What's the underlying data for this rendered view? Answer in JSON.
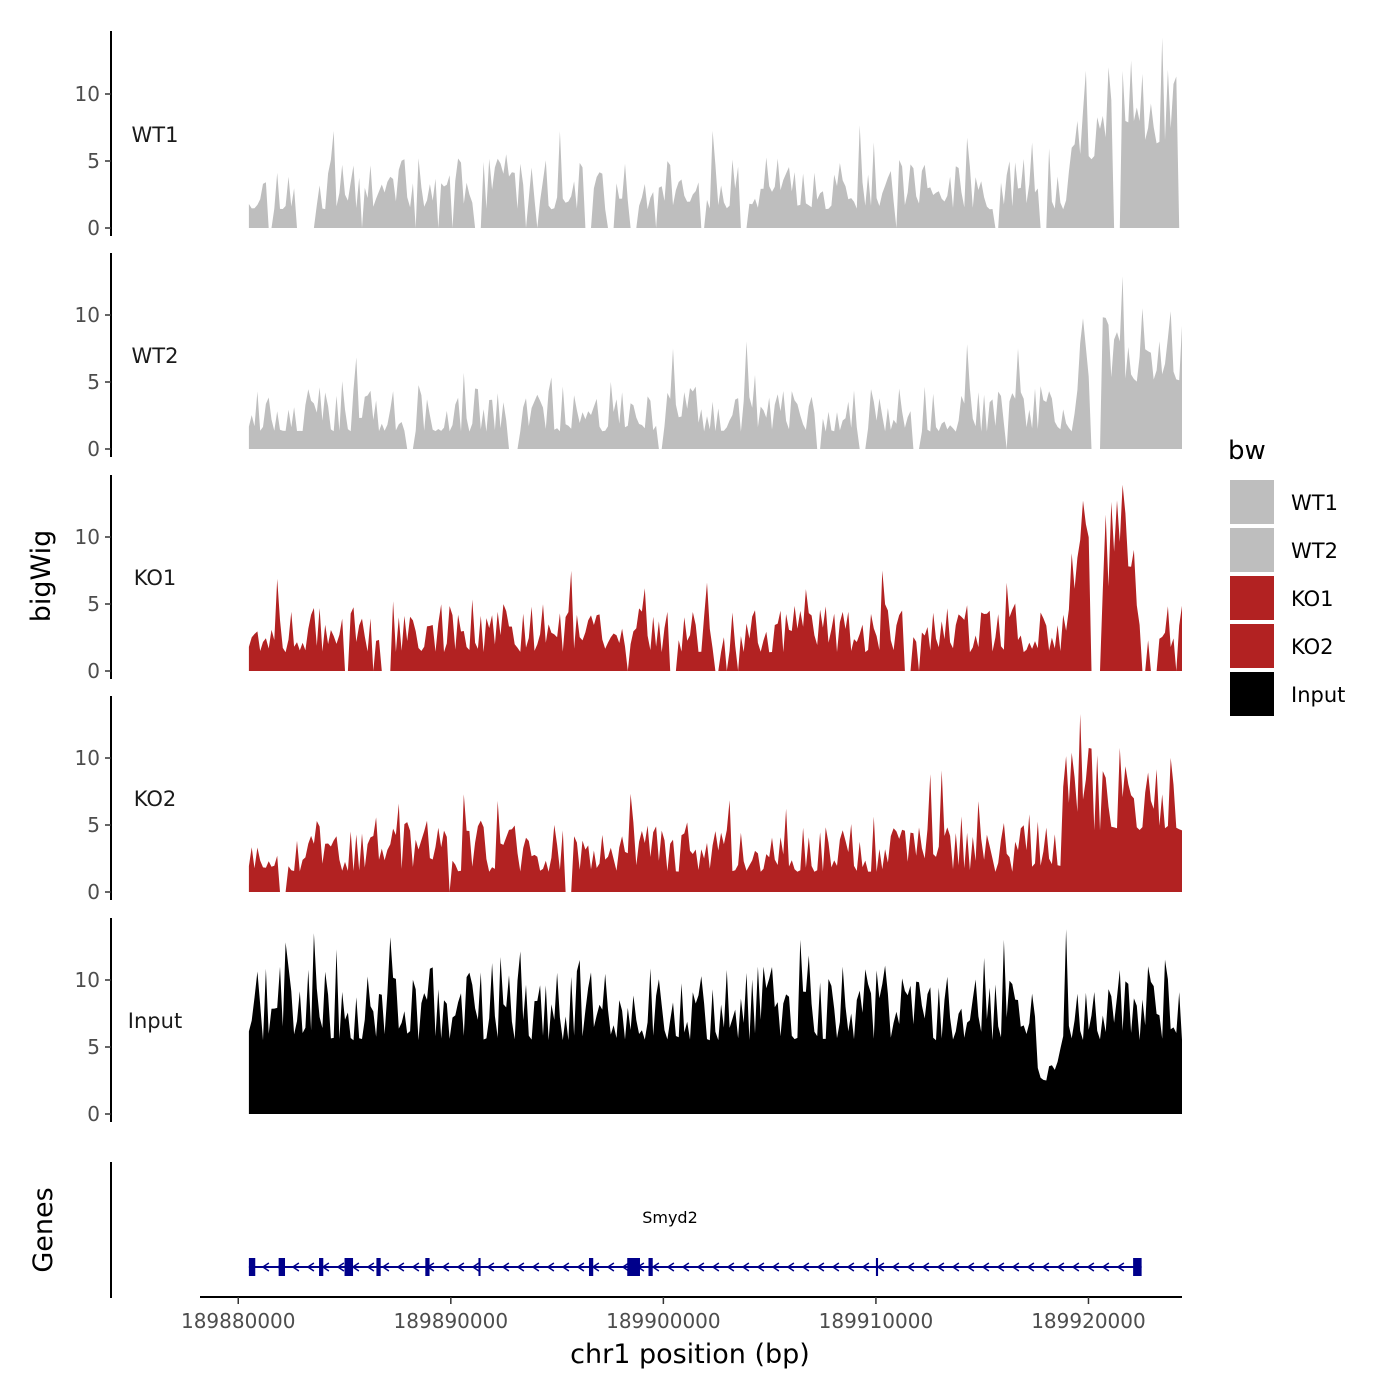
{
  "chart_data": {
    "type": "area",
    "y_axis_title": "bigWig",
    "x_axis_title": "chr1 position (bp)",
    "x_ticks": [
      189880000,
      189890000,
      189900000,
      189910000,
      189920000
    ],
    "x_tick_labels": [
      "189880000",
      "189890000",
      "189900000",
      "189910000",
      "189920000"
    ],
    "xlim": [
      189878200,
      189924400
    ],
    "data_xrange": [
      189880500,
      189924400
    ],
    "ylim": [
      0,
      14.5
    ],
    "y_ticks": [
      0,
      5,
      10
    ],
    "y_tick_labels": [
      "0",
      "5",
      "10"
    ],
    "legend": {
      "title": "bw",
      "entries": [
        {
          "label": "WT1",
          "color": "#bebebe"
        },
        {
          "label": "WT2",
          "color": "#bebebe"
        },
        {
          "label": "KO1",
          "color": "#b22222"
        },
        {
          "label": "KO2",
          "color": "#b22222"
        },
        {
          "label": "Input",
          "color": "#000000"
        }
      ]
    },
    "tracks": [
      {
        "name": "WT1",
        "color": "#bebebe",
        "seed": 11,
        "base": 1.4,
        "noise": 2.4,
        "peak": 0.07,
        "peakAmp": 4.5,
        "gap": 0.07,
        "regions": [
          {
            "start": 0.88,
            "end": 1.0,
            "base": 5.0,
            "noise": 4.5
          }
        ],
        "peaks": [
          {
            "pos": 0.944,
            "value": 12.5
          },
          {
            "pos": 0.922,
            "value": 12.0
          },
          {
            "pos": 0.958,
            "value": 11.5
          },
          {
            "pos": 0.67,
            "value": 6.4
          }
        ]
      },
      {
        "name": "WT2",
        "color": "#bebebe",
        "seed": 23,
        "base": 1.3,
        "noise": 2.2,
        "peak": 0.06,
        "peakAmp": 4.0,
        "gap": 0.02,
        "regions": [
          {
            "start": 0.89,
            "end": 1.0,
            "base": 5.0,
            "noise": 3.5
          }
        ],
        "peaks": [
          {
            "pos": 0.935,
            "value": 12.9
          },
          {
            "pos": 0.825,
            "value": 7.5
          },
          {
            "pos": 0.999,
            "value": 9.2
          }
        ]
      },
      {
        "name": "KO1",
        "color": "#b22222",
        "seed": 37,
        "base": 1.4,
        "noise": 2.3,
        "peak": 0.07,
        "peakAmp": 3.8,
        "gap": 0.05,
        "regions": [
          {
            "start": 0.88,
            "end": 0.95,
            "base": 6.0,
            "noise": 4.5
          }
        ],
        "peaks": [
          {
            "pos": 0.937,
            "value": 13.9
          },
          {
            "pos": 0.68,
            "value": 7.5
          },
          {
            "pos": 0.49,
            "value": 6.6
          }
        ]
      },
      {
        "name": "KO2",
        "color": "#b22222",
        "seed": 53,
        "base": 1.5,
        "noise": 2.4,
        "peak": 0.08,
        "peakAmp": 4.0,
        "gap": 0.015,
        "regions": [
          {
            "start": 0.87,
            "end": 1.0,
            "base": 4.5,
            "noise": 4.0
          }
        ],
        "peaks": [
          {
            "pos": 0.91,
            "value": 10.2
          },
          {
            "pos": 0.73,
            "value": 8.8
          },
          {
            "pos": 0.23,
            "value": 7.3
          },
          {
            "pos": 0.16,
            "value": 6.6
          }
        ]
      },
      {
        "name": "Input",
        "color": "#000000",
        "seed": 71,
        "base": 5.5,
        "noise": 3.5,
        "peak": 0.1,
        "peakAmp": 5.5,
        "gap": 0.0,
        "regions": [
          {
            "start": 0.845,
            "end": 0.87,
            "base": 2.5,
            "noise": 1.5
          }
        ],
        "peaks": [
          {
            "pos": 0.876,
            "value": 13.8
          },
          {
            "pos": 0.07,
            "value": 13.5
          },
          {
            "pos": 0.59,
            "value": 13.0
          },
          {
            "pos": 0.153,
            "value": 13.2
          }
        ]
      }
    ],
    "genes": {
      "panel_label": "Genes",
      "name": "Smyd2",
      "strand": "-",
      "color": "#00008b",
      "start": 189880500,
      "end": 189922500,
      "exons": [
        {
          "start": 189880500,
          "end": 189880800
        },
        {
          "start": 189881900,
          "end": 189882200
        },
        {
          "start": 189883800,
          "end": 189884000
        },
        {
          "start": 189885000,
          "end": 189885400
        },
        {
          "start": 189886500,
          "end": 189886700
        },
        {
          "start": 189888800,
          "end": 189889000
        },
        {
          "start": 189891300,
          "end": 189891400
        },
        {
          "start": 189896500,
          "end": 189896700
        },
        {
          "start": 189898300,
          "end": 189898900
        },
        {
          "start": 189899300,
          "end": 189899500
        },
        {
          "start": 189910000,
          "end": 189910100
        },
        {
          "start": 189922100,
          "end": 189922500
        }
      ]
    }
  }
}
